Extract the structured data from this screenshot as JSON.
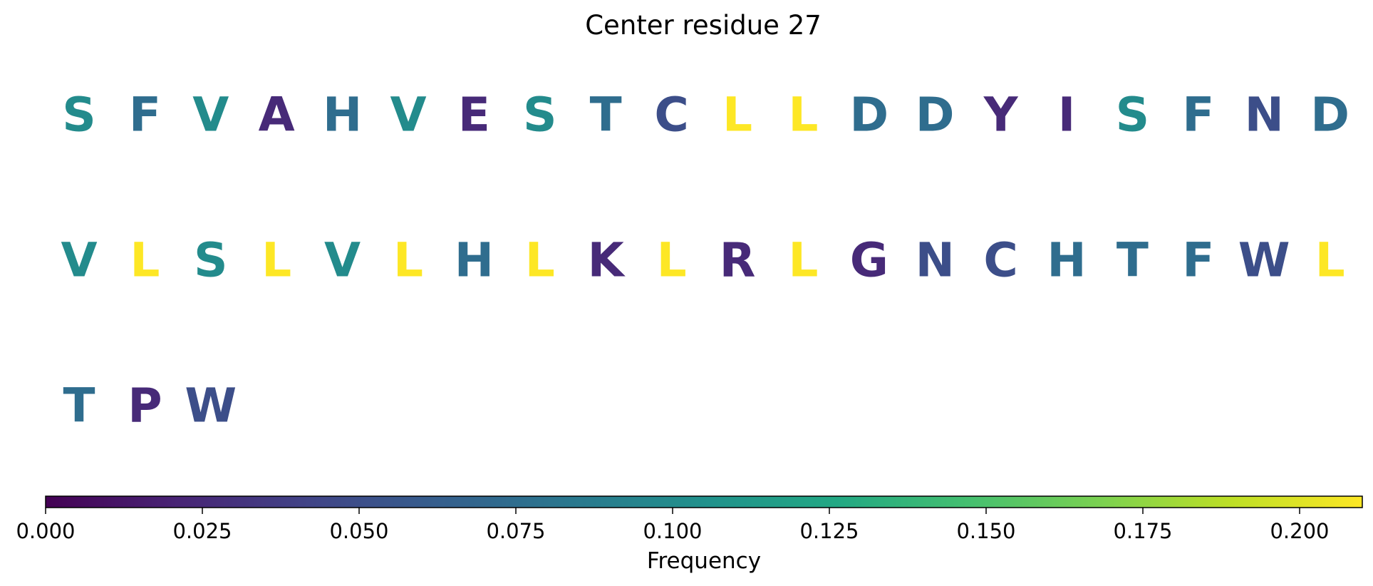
{
  "chart_data": {
    "type": "table",
    "title": "Center residue 27",
    "colorscale": "viridis",
    "residues": [
      {
        "letter": "S",
        "value": 0.1
      },
      {
        "letter": "F",
        "value": 0.075
      },
      {
        "letter": "V",
        "value": 0.1
      },
      {
        "letter": "A",
        "value": 0.025
      },
      {
        "letter": "H",
        "value": 0.075
      },
      {
        "letter": "V",
        "value": 0.1
      },
      {
        "letter": "E",
        "value": 0.025
      },
      {
        "letter": "S",
        "value": 0.1
      },
      {
        "letter": "T",
        "value": 0.075
      },
      {
        "letter": "C",
        "value": 0.05
      },
      {
        "letter": "L",
        "value": 0.21
      },
      {
        "letter": "L",
        "value": 0.21
      },
      {
        "letter": "D",
        "value": 0.075
      },
      {
        "letter": "D",
        "value": 0.075
      },
      {
        "letter": "Y",
        "value": 0.025
      },
      {
        "letter": "I",
        "value": 0.025
      },
      {
        "letter": "S",
        "value": 0.1
      },
      {
        "letter": "F",
        "value": 0.075
      },
      {
        "letter": "N",
        "value": 0.05
      },
      {
        "letter": "D",
        "value": 0.075
      },
      {
        "letter": "V",
        "value": 0.1
      },
      {
        "letter": "L",
        "value": 0.21
      },
      {
        "letter": "S",
        "value": 0.1
      },
      {
        "letter": "L",
        "value": 0.21
      },
      {
        "letter": "V",
        "value": 0.1
      },
      {
        "letter": "L",
        "value": 0.21
      },
      {
        "letter": "H",
        "value": 0.075
      },
      {
        "letter": "L",
        "value": 0.21
      },
      {
        "letter": "K",
        "value": 0.025
      },
      {
        "letter": "L",
        "value": 0.21
      },
      {
        "letter": "R",
        "value": 0.025
      },
      {
        "letter": "L",
        "value": 0.21
      },
      {
        "letter": "G",
        "value": 0.025
      },
      {
        "letter": "N",
        "value": 0.05
      },
      {
        "letter": "C",
        "value": 0.05
      },
      {
        "letter": "H",
        "value": 0.075
      },
      {
        "letter": "T",
        "value": 0.075
      },
      {
        "letter": "F",
        "value": 0.075
      },
      {
        "letter": "W",
        "value": 0.05
      },
      {
        "letter": "L",
        "value": 0.21
      },
      {
        "letter": "T",
        "value": 0.075
      },
      {
        "letter": "P",
        "value": 0.025
      },
      {
        "letter": "W",
        "value": 0.05
      }
    ],
    "colorbar": {
      "label": "Frequency",
      "range": [
        0,
        0.21
      ],
      "ticks": [
        0.0,
        0.025,
        0.05,
        0.075,
        0.1,
        0.125,
        0.15,
        0.175,
        0.2
      ],
      "tick_labels": [
        "0.000",
        "0.025",
        "0.050",
        "0.075",
        "0.100",
        "0.125",
        "0.150",
        "0.175",
        "0.200"
      ]
    }
  }
}
